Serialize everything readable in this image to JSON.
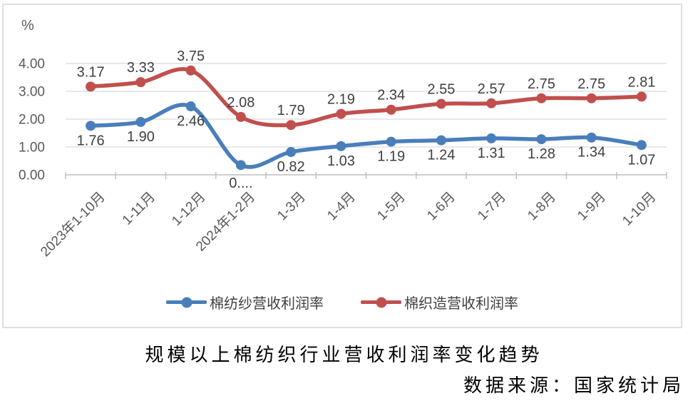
{
  "chart_data": {
    "type": "line",
    "title": "规模以上棉纺织行业营收利润率变化趋势",
    "categories": [
      "2023年1-10月",
      "1-11月",
      "1-12月",
      "2024年1-2月",
      "1-3月",
      "1-4月",
      "1-5月",
      "1-6月",
      "1-7月",
      "1-8月",
      "1-9月",
      "1-10月"
    ],
    "series": [
      {
        "name": "棉纺纱营收利润率",
        "color": "#4A7EBB",
        "label_position": "below",
        "values": [
          1.76,
          1.9,
          2.46,
          0.35,
          0.82,
          1.03,
          1.19,
          1.24,
          1.31,
          1.28,
          1.34,
          1.07
        ],
        "labels": [
          "1.76",
          "1.90",
          "2.46",
          "0....",
          "0.82",
          "1.03",
          "1.19",
          "1.24",
          "1.31",
          "1.28",
          "1.34",
          "1.07"
        ]
      },
      {
        "name": "棉织造营收利润率",
        "color": "#C0504D",
        "label_position": "above",
        "values": [
          3.17,
          3.33,
          3.75,
          2.08,
          1.79,
          2.19,
          2.34,
          2.55,
          2.57,
          2.75,
          2.75,
          2.81
        ],
        "labels": [
          "3.17",
          "3.33",
          "3.75",
          "2.08",
          "1.79",
          "2.19",
          "2.34",
          "2.55",
          "2.57",
          "2.75",
          "2.75",
          "2.81"
        ]
      }
    ],
    "y_axis": {
      "unit_label": "%",
      "min": 0,
      "max": 4,
      "step": 1,
      "tick_labels": [
        "0.00",
        "1.00",
        "2.00",
        "3.00",
        "4.00"
      ]
    },
    "grid": true,
    "smooth_lines": true,
    "legend_position": "bottom"
  },
  "caption": {
    "title": "规模以上棉纺织行业营收利润率变化趋势",
    "source": "数据来源：国家统计局"
  },
  "colors": {
    "grid_line": "#D9D9D9",
    "axis_line": "#BFBFBF",
    "axis_text": "#595959",
    "data_label_text": "#3F3F3F",
    "legend_text": "#404040",
    "card_border": "#DFDFDF"
  }
}
